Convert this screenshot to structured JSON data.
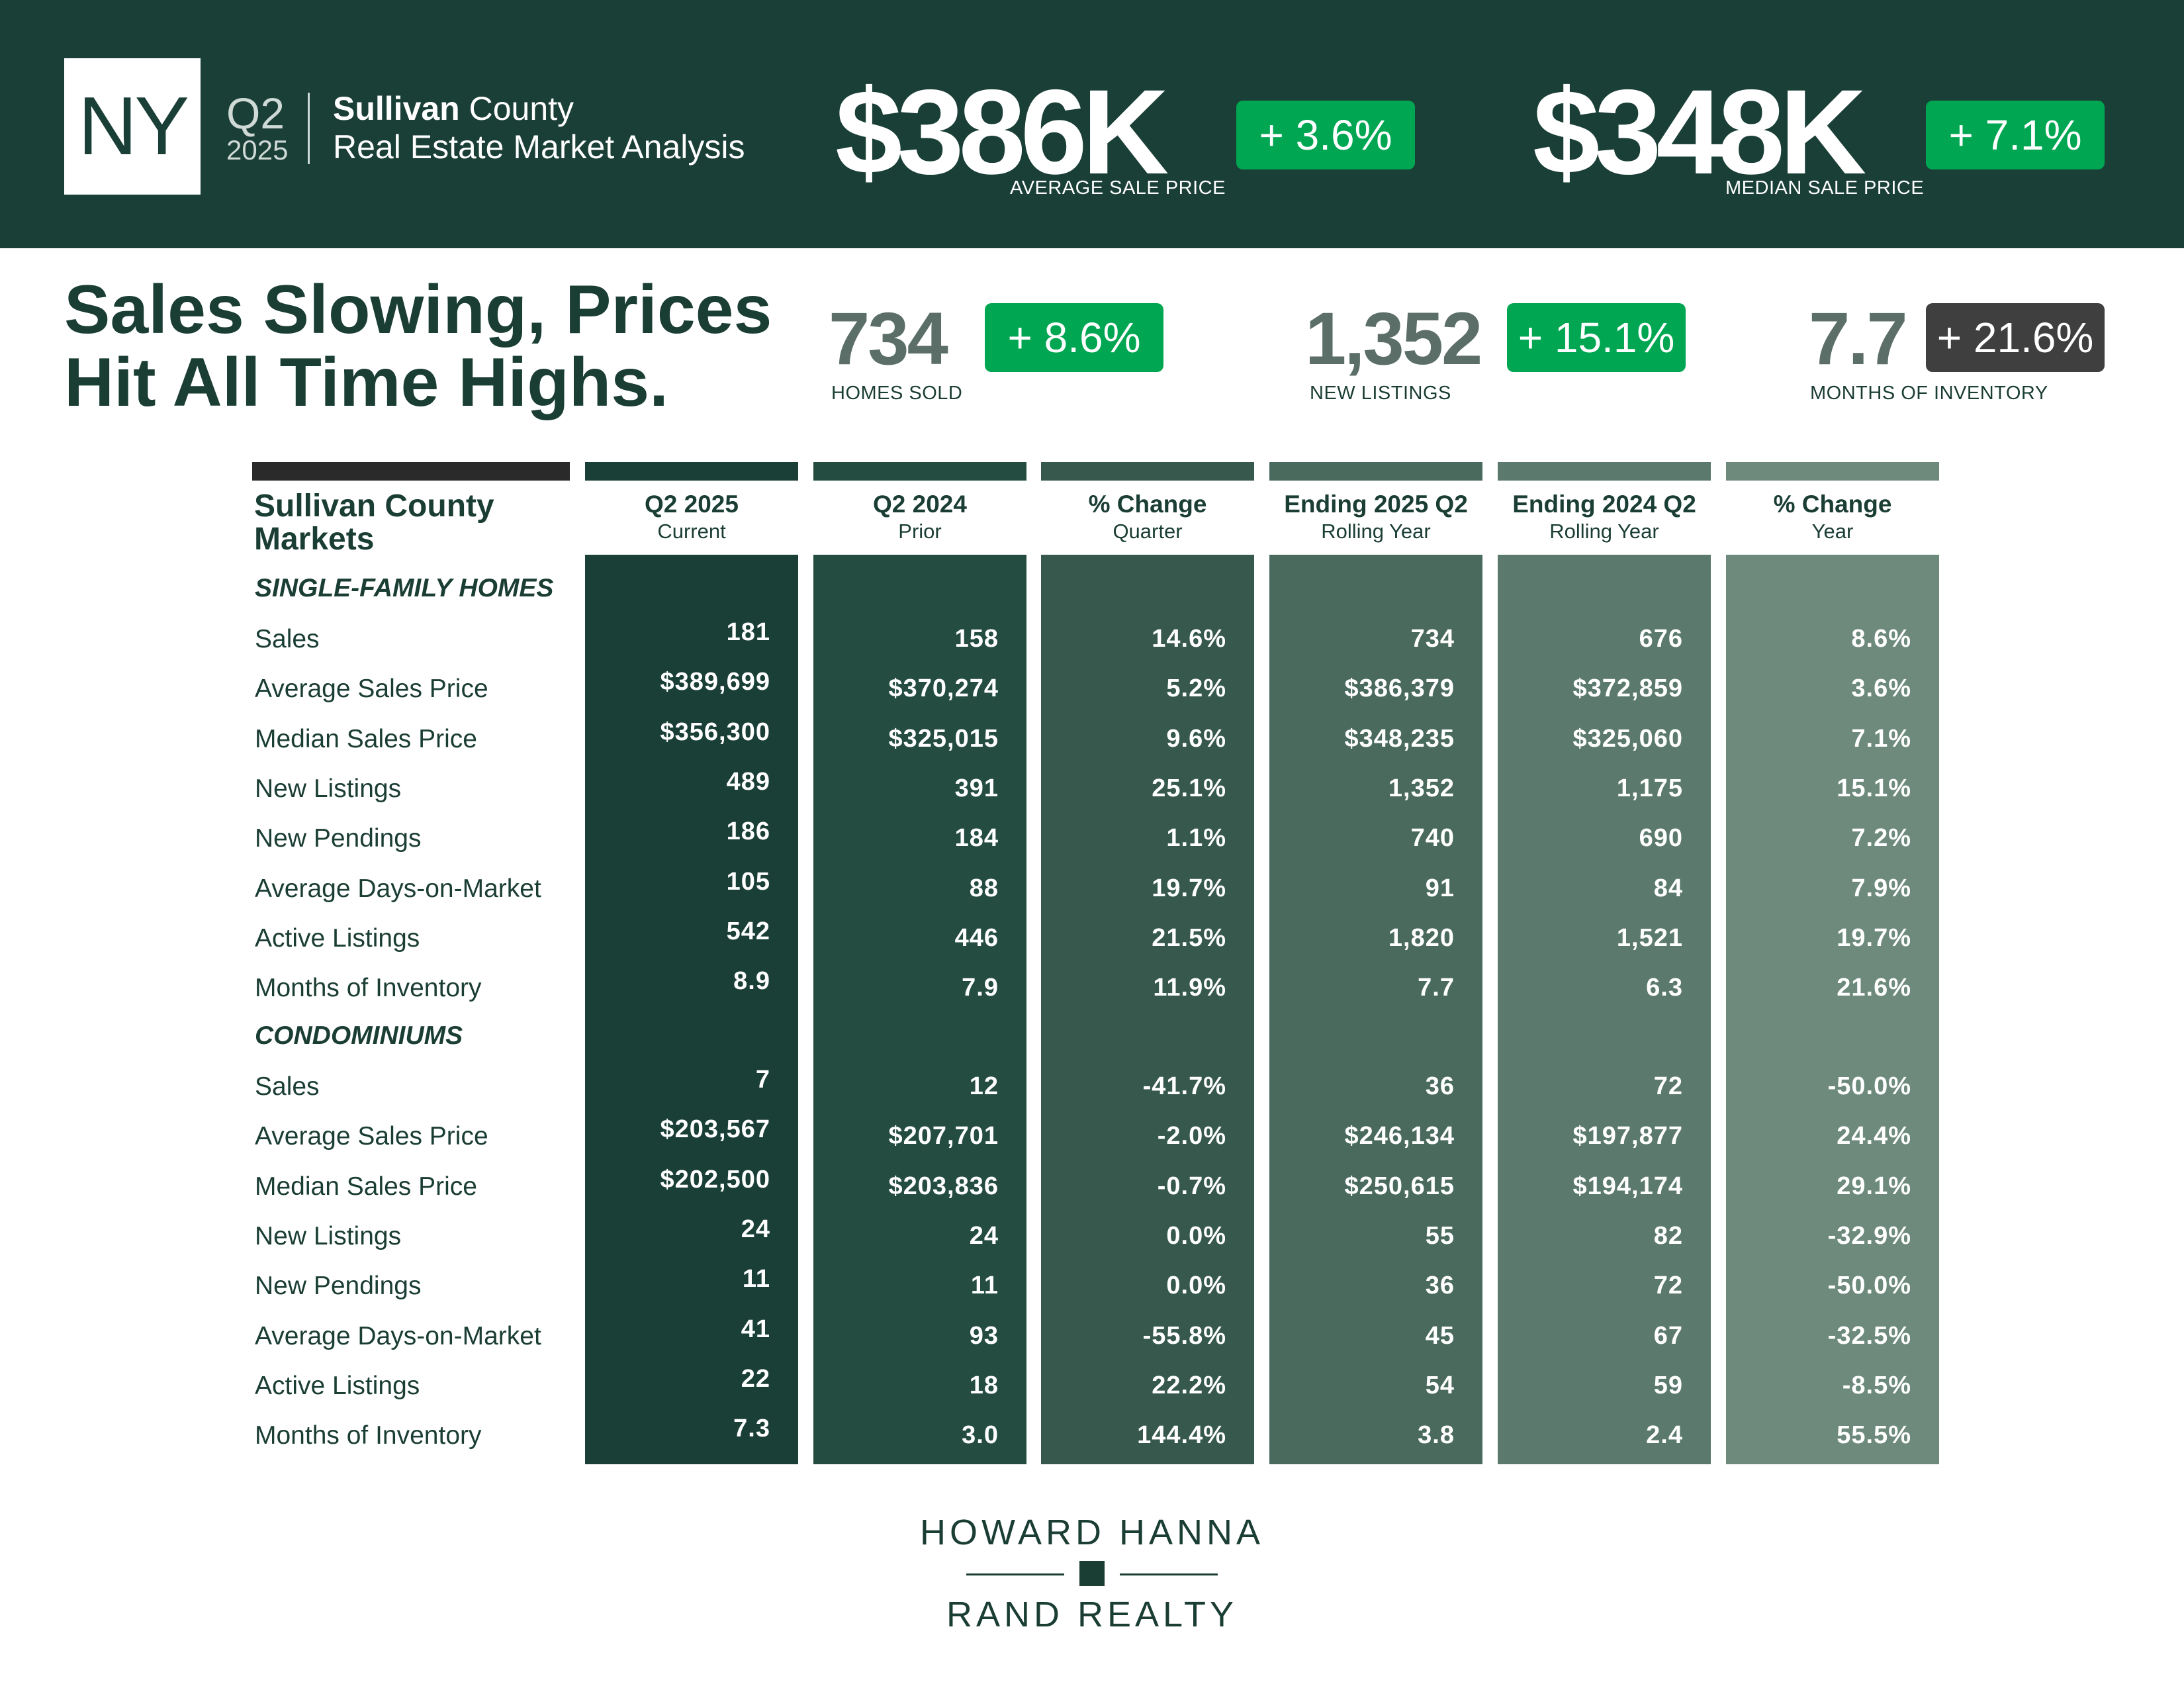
{
  "header": {
    "state": "NY",
    "quarter": "Q2",
    "year": "2025",
    "county_bold": "Sullivan",
    "county_rest": " County",
    "subtitle": "Real Estate Market Analysis",
    "stats": [
      {
        "value": "$386K",
        "change": "+ 3.6%",
        "label": "AVERAGE SALE PRICE"
      },
      {
        "value": "$348K",
        "change": "+ 7.1%",
        "label": "MEDIAN SALE PRICE"
      }
    ]
  },
  "headline": {
    "line1": "Sales Slowing, Prices",
    "line2": "Hit All Time Highs."
  },
  "summary": [
    {
      "value": "734",
      "change": "+ 8.6%",
      "label": "HOMES SOLD"
    },
    {
      "value": "1,352",
      "change": "+ 15.1%",
      "label": "NEW LISTINGS"
    },
    {
      "value": "7.7",
      "change": "+ 21.6%",
      "label": "MONTHS OF INVENTORY"
    }
  ],
  "colors": {
    "header_bg": "#1a3f36",
    "pill_green": "#00a651",
    "pill_dark": "#3f3f3f",
    "col1": "#1a3f36",
    "col2": "#244c41",
    "col3": "#36584d",
    "col4": "#4a6a5e",
    "col5": "#5b7a6d",
    "col6": "#6d8a7d"
  },
  "table": {
    "title_line1": "Sullivan County",
    "title_line2": "Markets",
    "columns": [
      {
        "h1": "Q2 2025",
        "h2": "Current"
      },
      {
        "h1": "Q2 2024",
        "h2": "Prior"
      },
      {
        "h1": "% Change",
        "h2": "Quarter"
      },
      {
        "h1": "Ending 2025 Q2",
        "h2": "Rolling Year"
      },
      {
        "h1": "Ending 2024 Q2",
        "h2": "Rolling Year"
      },
      {
        "h1": "% Change",
        "h2": "Year"
      }
    ],
    "sections": [
      {
        "title": "SINGLE-FAMILY HOMES",
        "rows": [
          {
            "label": "Sales",
            "values": [
              "181",
              "158",
              "14.6%",
              "734",
              "676",
              "8.6%"
            ]
          },
          {
            "label": "Average Sales Price",
            "values": [
              "$389,699",
              "$370,274",
              "5.2%",
              "$386,379",
              "$372,859",
              "3.6%"
            ]
          },
          {
            "label": "Median Sales Price",
            "values": [
              "$356,300",
              "$325,015",
              "9.6%",
              "$348,235",
              "$325,060",
              "7.1%"
            ]
          },
          {
            "label": "New Listings",
            "values": [
              "489",
              "391",
              "25.1%",
              "1,352",
              "1,175",
              "15.1%"
            ]
          },
          {
            "label": "New Pendings",
            "values": [
              "186",
              "184",
              "1.1%",
              "740",
              "690",
              "7.2%"
            ]
          },
          {
            "label": "Average Days-on-Market",
            "values": [
              "105",
              "88",
              "19.7%",
              "91",
              "84",
              "7.9%"
            ]
          },
          {
            "label": "Active Listings",
            "values": [
              "542",
              "446",
              "21.5%",
              "1,820",
              "1,521",
              "19.7%"
            ]
          },
          {
            "label": "Months of Inventory",
            "values": [
              "8.9",
              "7.9",
              "11.9%",
              "7.7",
              "6.3",
              "21.6%"
            ]
          }
        ]
      },
      {
        "title": "CONDOMINIUMS",
        "rows": [
          {
            "label": "Sales",
            "values": [
              "7",
              "12",
              "-41.7%",
              "36",
              "72",
              "-50.0%"
            ]
          },
          {
            "label": "Average Sales Price",
            "values": [
              "$203,567",
              "$207,701",
              "-2.0%",
              "$246,134",
              "$197,877",
              "24.4%"
            ]
          },
          {
            "label": "Median Sales Price",
            "values": [
              "$202,500",
              "$203,836",
              "-0.7%",
              "$250,615",
              "$194,174",
              "29.1%"
            ]
          },
          {
            "label": "New Listings",
            "values": [
              "24",
              "24",
              "0.0%",
              "55",
              "82",
              "-32.9%"
            ]
          },
          {
            "label": "New Pendings",
            "values": [
              "11",
              "11",
              "0.0%",
              "36",
              "72",
              "-50.0%"
            ]
          },
          {
            "label": "Average Days-on-Market",
            "values": [
              "41",
              "93",
              "-55.8%",
              "45",
              "67",
              "-32.5%"
            ]
          },
          {
            "label": "Active Listings",
            "values": [
              "22",
              "18",
              "22.2%",
              "54",
              "59",
              "-8.5%"
            ]
          },
          {
            "label": "Months of Inventory",
            "values": [
              "7.3",
              "3.0",
              "144.4%",
              "3.8",
              "2.4",
              "55.5%"
            ]
          }
        ]
      }
    ]
  },
  "footer": {
    "brand_line1": "HOWARD HANNA",
    "brand_line2": "RAND REALTY"
  }
}
